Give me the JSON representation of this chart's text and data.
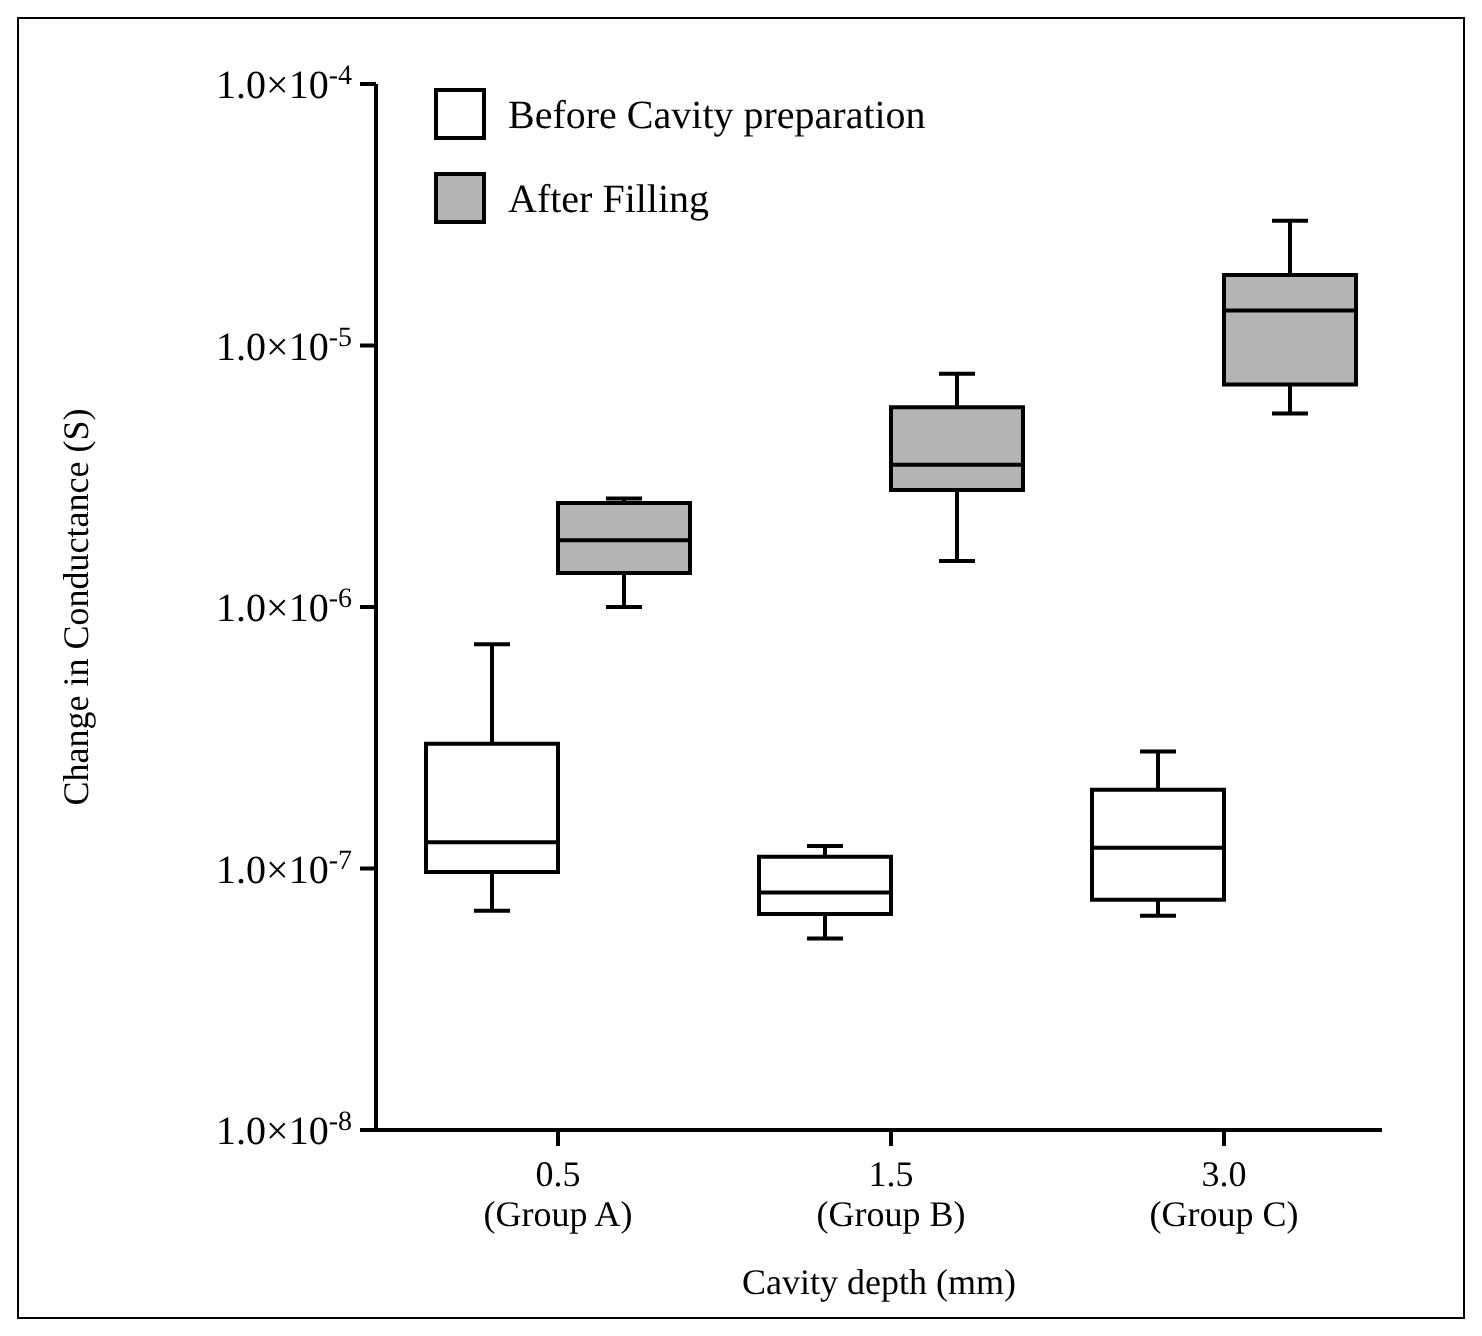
{
  "chart_data": {
    "type": "box",
    "xlabel": "Cavity depth (mm)",
    "ylabel": "Change in Conductance (S)",
    "categories": [
      "0.5\n(Group A)",
      "1.5\n(Group B)",
      "3.0\n(Group C)"
    ],
    "log": true,
    "ylim": [
      1e-08,
      0.0001
    ],
    "yticks": [
      {
        "value": 1e-08,
        "label": "1.0×10$^{-8}$"
      },
      {
        "value": 1e-07,
        "label": "1.0×10$^{-7}$"
      },
      {
        "value": 1e-06,
        "label": "1.0×10$^{-6}$"
      },
      {
        "value": 1e-05,
        "label": "1.0×10$^{-5}$"
      },
      {
        "value": 0.0001,
        "label": "1.0×10$^{-4}$"
      }
    ],
    "legend": "top left",
    "grid": false,
    "series": [
      {
        "name": "Before Cavity preparation",
        "color": "#ffffff",
        "boxes": [
          {
            "low": 6.9e-08,
            "q1": 9.7e-08,
            "median": 1.26e-07,
            "q3": 3e-07,
            "high": 7.2e-07
          },
          {
            "low": 5.4e-08,
            "q1": 6.7e-08,
            "median": 8.1e-08,
            "q3": 1.11e-07,
            "high": 1.22e-07
          },
          {
            "low": 6.6e-08,
            "q1": 7.6e-08,
            "median": 1.2e-07,
            "q3": 2e-07,
            "high": 2.8e-07
          }
        ]
      },
      {
        "name": "After Filling",
        "color": "#b4b4b4",
        "boxes": [
          {
            "low": 1e-06,
            "q1": 1.35e-06,
            "median": 1.8e-06,
            "q3": 2.5e-06,
            "high": 2.6e-06
          },
          {
            "low": 1.5e-06,
            "q1": 2.8e-06,
            "median": 3.5e-06,
            "q3": 5.8e-06,
            "high": 7.8e-06
          },
          {
            "low": 5.5e-06,
            "q1": 7.1e-06,
            "median": 1.36e-05,
            "q3": 1.86e-05,
            "high": 3e-05
          }
        ]
      }
    ]
  }
}
